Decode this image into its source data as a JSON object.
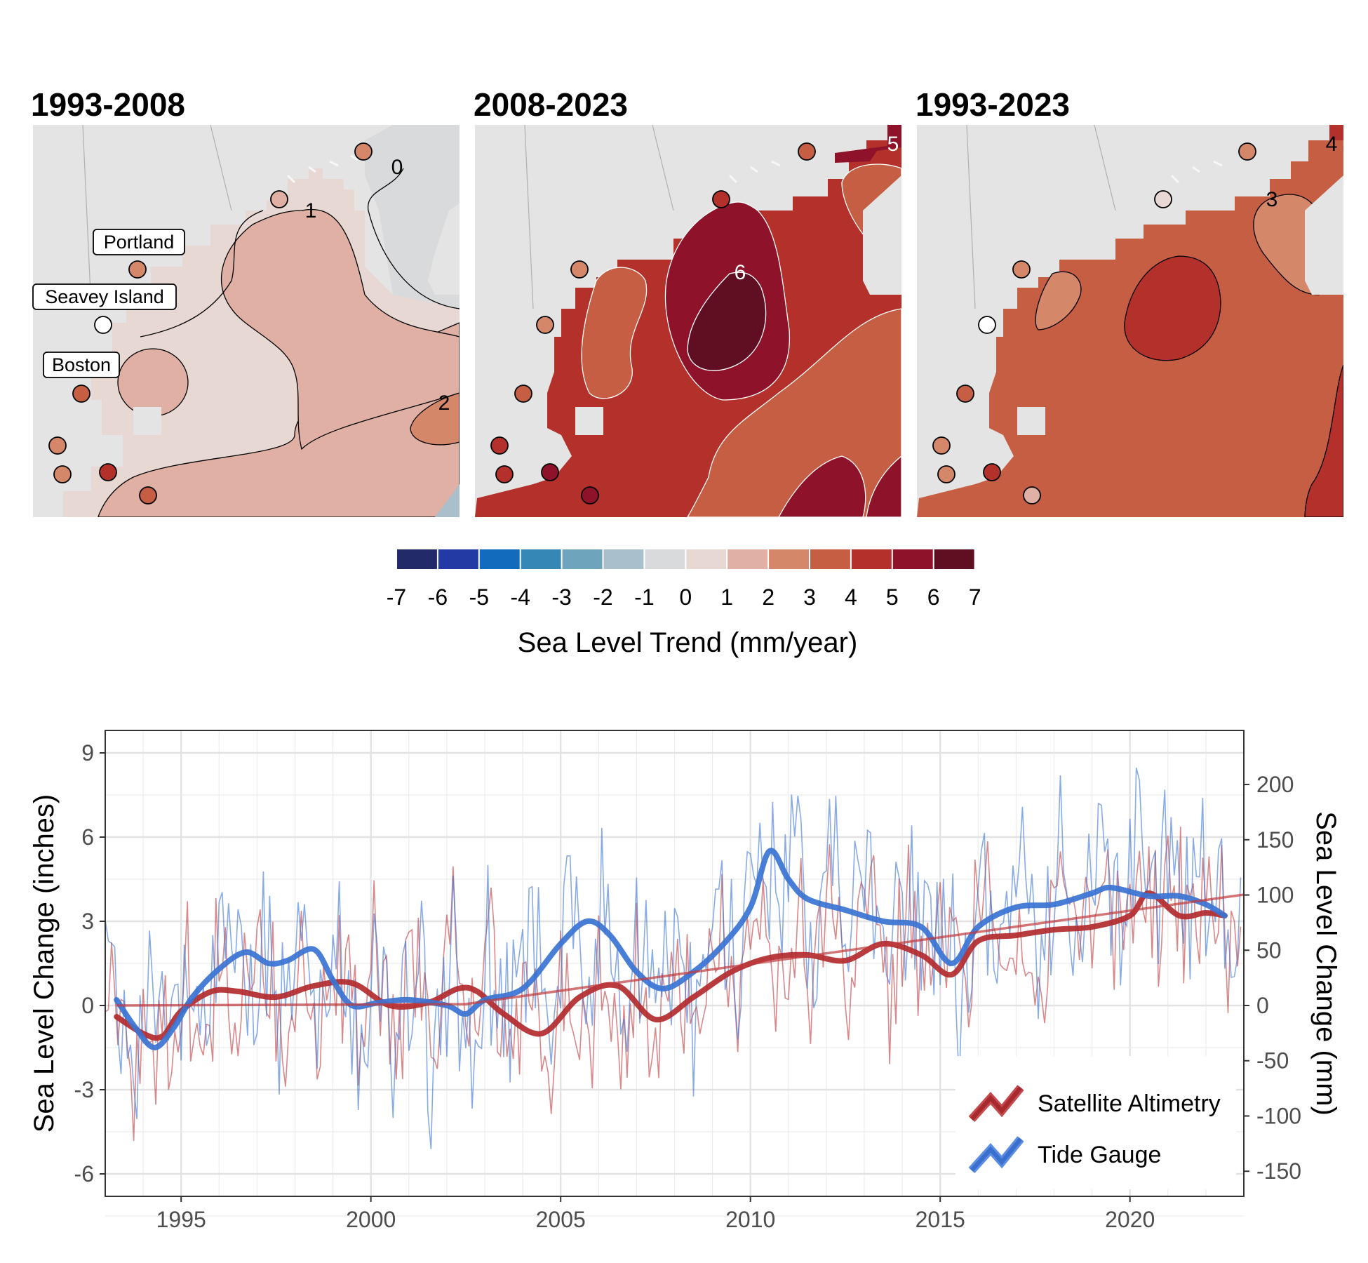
{
  "maps": {
    "panels": [
      {
        "title": "1993-2008",
        "contour_labels": [
          "0",
          "1",
          "2"
        ],
        "dominant_trend": 1.5
      },
      {
        "title": "2008-2023",
        "contour_labels": [
          "5",
          "6"
        ],
        "dominant_trend": 4.5
      },
      {
        "title": "1993-2023",
        "contour_labels": [
          "4",
          "3"
        ],
        "dominant_trend": 3.5
      }
    ],
    "place_labels": [
      "Portland",
      "Seavey Island",
      "Boston"
    ],
    "tide_gauge_trends": [
      {
        "station": "Portland",
        "values": [
          1.6,
          4.2,
          2.8
        ]
      },
      {
        "station": "Seavey Island",
        "values": [
          -0.2,
          3.2,
          0.0
        ]
      },
      {
        "station": "Boston",
        "values": [
          2.9,
          3.3,
          2.5
        ]
      }
    ],
    "legend": {
      "title": "Sea Level Trend (mm/year)",
      "ticks": [
        "-7",
        "-6",
        "-5",
        "-4",
        "-3",
        "-2",
        "-1",
        "0",
        "1",
        "2",
        "3",
        "4",
        "5",
        "6",
        "7"
      ],
      "colors": [
        "#222a6a",
        "#2339a3",
        "#136bbd",
        "#3588b6",
        "#6fa4bd",
        "#a9bfcc",
        "#d8dadc",
        "#e8d8d4",
        "#dfb0a3",
        "#d58769",
        "#c55e42",
        "#b4302a",
        "#8e1229",
        "#600e22"
      ]
    }
  },
  "chart_data": {
    "type": "line",
    "xlabel": "",
    "ylabel": "Sea Level Change (inches)",
    "ylabel_right": "Sea Level Change (mm)",
    "xlim": [
      1993.0,
      2023.0
    ],
    "ylim": [
      -6.8,
      9.8
    ],
    "ylim_right_mm": [
      -172.7,
      248.9
    ],
    "x_ticks": [
      "1995",
      "2000",
      "2005",
      "2010",
      "2015",
      "2020"
    ],
    "y_ticks": [
      "9",
      "6",
      "3",
      "0",
      "-3",
      "-6"
    ],
    "y_ticks_right": [
      "200",
      "150",
      "100",
      "50",
      "0",
      "-50",
      "-100",
      "-150"
    ],
    "grid": true,
    "legend": {
      "position": "bottom-right",
      "entries": [
        "Satellite Altimetry",
        "Tide Gauge"
      ]
    },
    "series": [
      {
        "name": "Satellite Altimetry",
        "kind": "smoothed",
        "color": "#b22a2e",
        "x": [
          1993.3,
          1994.0,
          1994.5,
          1995.0,
          1995.8,
          1996.5,
          1997.5,
          1998.5,
          1999.5,
          2000.5,
          2001.5,
          2002.3,
          2002.8,
          2003.5,
          2004.5,
          2005.5,
          2006.5,
          2007.5,
          2008.5,
          2009.5,
          2010.5,
          2011.5,
          2012.5,
          2013.5,
          2014.5,
          2015.3,
          2016.0,
          2017.0,
          2018.0,
          2019.0,
          2020.0,
          2020.5,
          2021.3,
          2022.0,
          2022.5
        ],
        "y": [
          -0.4,
          -1.0,
          -1.1,
          -0.2,
          0.5,
          0.5,
          0.3,
          0.7,
          0.8,
          0.0,
          0.1,
          0.6,
          0.5,
          -0.3,
          -1.0,
          0.3,
          0.7,
          -0.5,
          0.3,
          1.2,
          1.7,
          1.8,
          1.6,
          2.2,
          1.8,
          1.1,
          2.3,
          2.5,
          2.7,
          2.8,
          3.2,
          4.0,
          3.2,
          3.3,
          3.2
        ]
      },
      {
        "name": "Tide Gauge",
        "kind": "smoothed",
        "color": "#3a73d3",
        "x": [
          1993.3,
          1993.8,
          1994.3,
          1994.8,
          1995.3,
          1996.0,
          1996.7,
          1997.3,
          1997.8,
          1998.5,
          1999.0,
          1999.5,
          2000.2,
          2001.0,
          2002.0,
          2002.5,
          2003.0,
          2004.0,
          2005.0,
          2005.7,
          2006.3,
          2007.0,
          2007.7,
          2008.5,
          2009.3,
          2010.0,
          2010.5,
          2011.0,
          2011.5,
          2012.5,
          2013.5,
          2014.5,
          2015.3,
          2016.0,
          2017.0,
          2018.0,
          2019.0,
          2019.5,
          2020.5,
          2021.3,
          2022.0,
          2022.5
        ],
        "y": [
          0.2,
          -0.8,
          -1.5,
          -0.8,
          0.3,
          1.3,
          1.9,
          1.5,
          1.6,
          2.0,
          0.9,
          0.0,
          0.1,
          0.2,
          0.0,
          -0.3,
          0.2,
          0.6,
          2.2,
          3.0,
          2.5,
          1.2,
          0.6,
          1.2,
          2.2,
          3.5,
          5.5,
          4.5,
          3.8,
          3.4,
          3.0,
          2.8,
          1.5,
          2.8,
          3.5,
          3.6,
          4.0,
          4.2,
          3.9,
          3.9,
          3.6,
          3.2
        ]
      },
      {
        "name": "Satellite Altimetry",
        "kind": "trend",
        "color": "#c0393c",
        "x": [
          1993.3,
          2002.5,
          2023.0
        ],
        "y": [
          0.0,
          0.05,
          3.95
        ]
      }
    ]
  }
}
